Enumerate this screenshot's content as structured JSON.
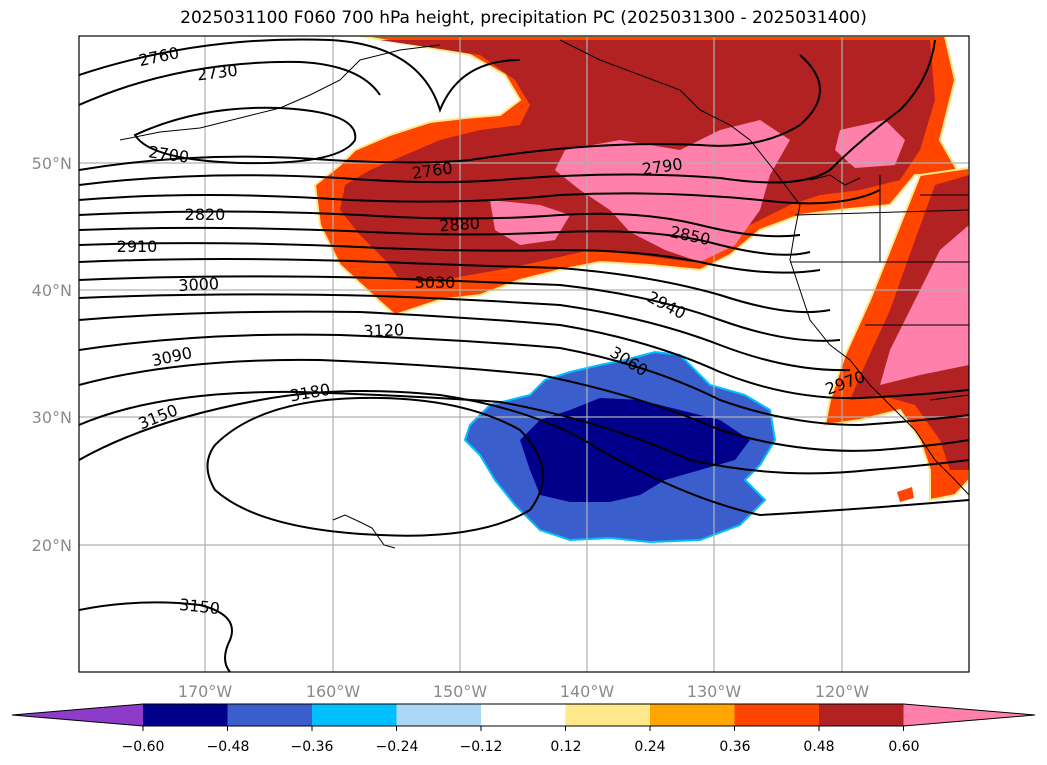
{
  "title": "2025031100 F060 700 hPa height, precipitation PC (2025031300 - 2025031400)",
  "map": {
    "lat_labels": [
      "50°N",
      "40°N",
      "30°N",
      "20°N"
    ],
    "lon_labels": [
      "170°W",
      "160°W",
      "150°W",
      "140°W",
      "130°W",
      "120°W"
    ],
    "contour_labels": [
      "2760",
      "2730",
      "2700",
      "2820",
      "2910",
      "3000",
      "3090",
      "3150",
      "2760",
      "2880",
      "3030",
      "3120",
      "3180",
      "2790",
      "2850",
      "2940",
      "3060",
      "2970",
      "3150"
    ]
  },
  "colorbar": {
    "ticks": [
      "−0.60",
      "−0.48",
      "−0.36",
      "−0.24",
      "−0.12",
      "0.12",
      "0.24",
      "0.36",
      "0.48",
      "0.60"
    ],
    "colors": [
      "#8c3cc8",
      "#00008b",
      "#3a5fcd",
      "#00bfff",
      "#add8f5",
      "#ffffff",
      "#ffe88a",
      "#ffa500",
      "#ff4500",
      "#b22222",
      "#ff80aa"
    ]
  }
}
